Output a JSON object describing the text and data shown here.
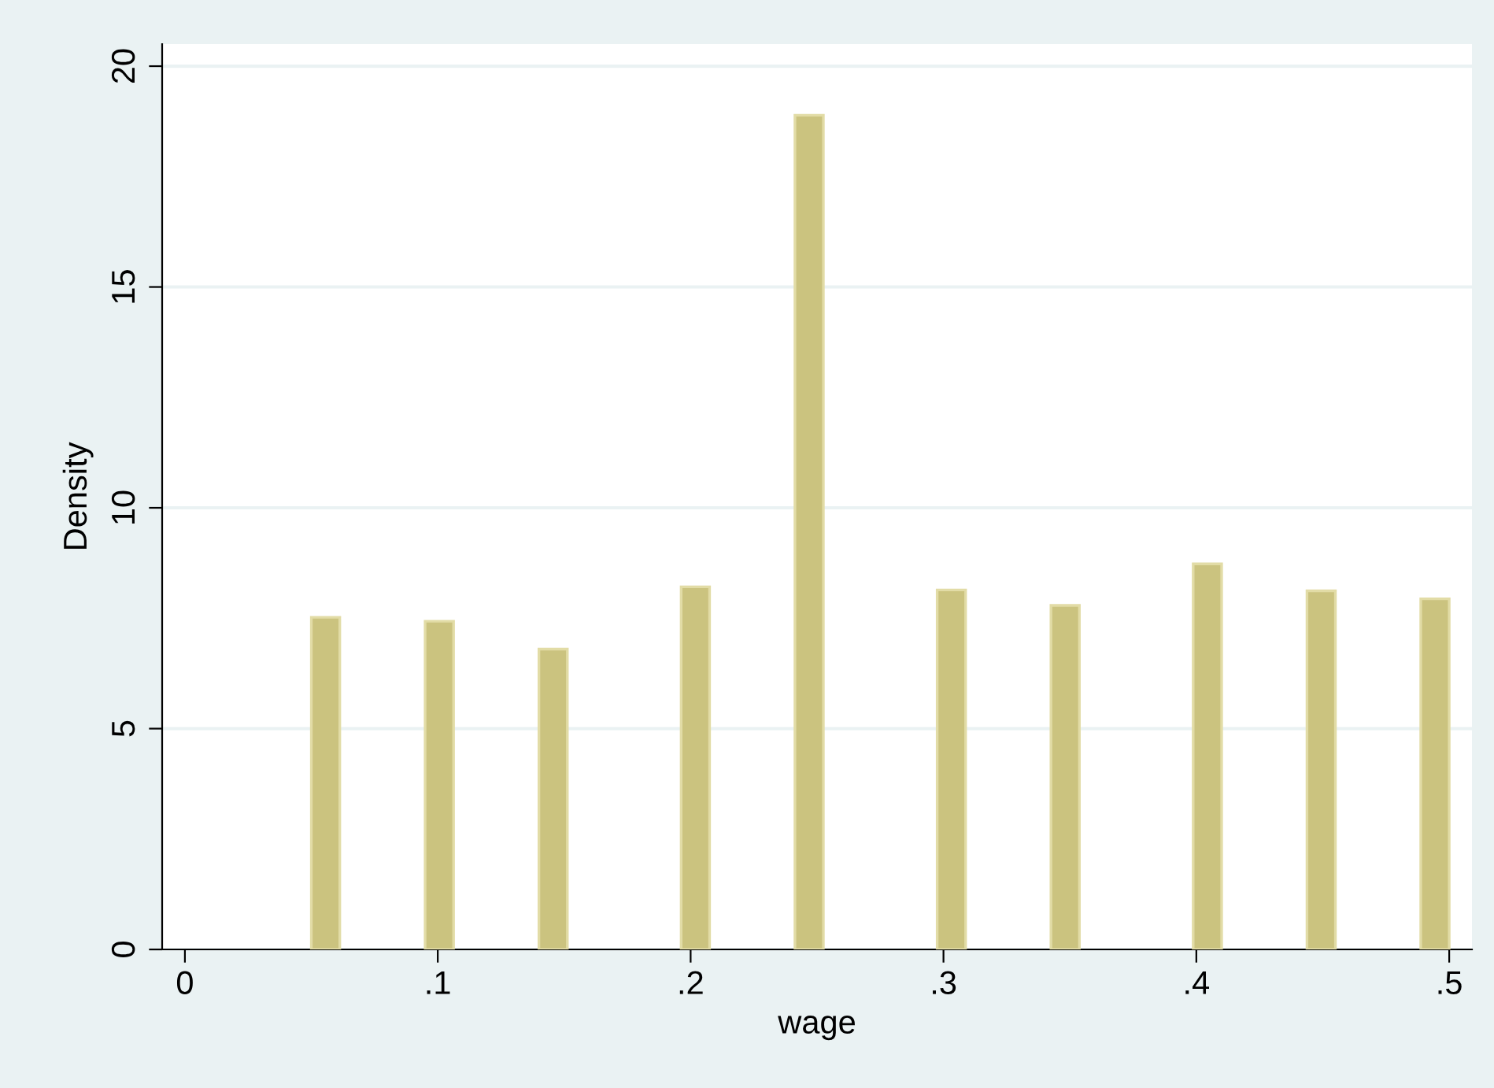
{
  "chart_data": {
    "type": "histogram",
    "xlabel": "wage",
    "ylabel": "Density",
    "bins": [
      0.05,
      0.06125,
      0.0725,
      0.08375,
      0.095,
      0.10625,
      0.1175,
      0.12875,
      0.14,
      0.15125,
      0.1625,
      0.17375,
      0.185,
      0.19625,
      0.2075,
      0.21875,
      0.23,
      0.24125,
      0.2525,
      0.26375,
      0.275,
      0.28625,
      0.2975,
      0.30875,
      0.32,
      0.33125,
      0.3425,
      0.35375,
      0.365,
      0.37625,
      0.3875,
      0.39875,
      0.41,
      0.42125,
      0.4325,
      0.44375,
      0.455,
      0.46625,
      0.4775,
      0.48875,
      0.5
    ],
    "values": [
      7.52,
      0,
      0,
      0,
      7.43,
      0,
      0,
      0,
      6.8,
      0,
      0,
      0,
      0,
      8.21,
      0,
      0,
      0,
      18.89,
      0,
      0,
      0,
      0,
      8.14,
      0,
      0,
      0,
      7.79,
      0,
      0,
      0,
      0,
      8.73,
      0,
      0,
      0,
      8.12,
      0,
      0,
      0,
      7.94
    ],
    "color": "#cbc37f",
    "xlim": [
      -0.009,
      0.509
    ],
    "ylim": [
      0,
      20.5
    ],
    "xticks": [
      0,
      {
        "value": 0.1,
        "label": ".1"
      },
      {
        "value": 0.2,
        "label": ".2"
      },
      {
        "value": 0.3,
        "label": ".3"
      },
      {
        "value": 0.4,
        "label": ".4"
      },
      {
        "value": 0.5,
        "label": ".5"
      }
    ],
    "yticks": [
      0,
      5,
      10,
      15,
      20
    ],
    "grid": "y"
  }
}
